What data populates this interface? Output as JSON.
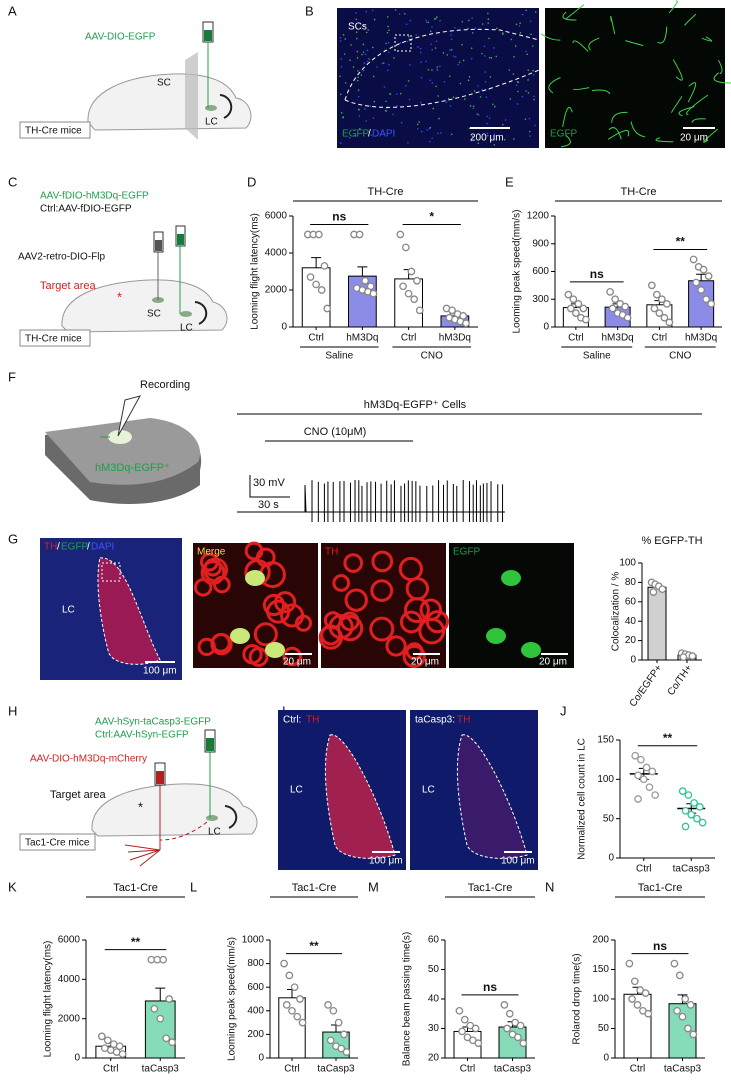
{
  "panels": {
    "A": {
      "label": "A",
      "virus": "AAV-DIO-EGFP",
      "sc": "SC",
      "lc": "LC",
      "mouse": "TH-Cre mice"
    },
    "B": {
      "label": "B",
      "region": "SCs",
      "stain1": "EGFP",
      "slash": "/",
      "stain2": "DAPI",
      "scale1": "200 μm",
      "stain3": "EGFP",
      "scale2": "20 μm"
    },
    "C": {
      "label": "C",
      "virus1": "AAV-fDIO-hM3Dq-EGFP",
      "virus2": "Ctrl:AAV-fDIO-EGFP",
      "virus3": "AAV2-retro-DIO-Flp",
      "target": "Target area",
      "star": "*",
      "sc": "SC",
      "lc": "LC",
      "mouse": "TH-Cre mice"
    },
    "D": {
      "label": "D"
    },
    "E": {
      "label": "E"
    },
    "F": {
      "label": "F",
      "recording": "Recording",
      "slice": "hM3Dq-EGFP⁺",
      "cells": "hM3Dq-EGFP⁺ Cells",
      "drug": "CNO (10μM)",
      "vscale": "30 mV",
      "tscale": "30 s"
    },
    "G": {
      "label": "G",
      "stain1": "TH",
      "slash1": "/",
      "stain2": "EGFP",
      "slash2": "/",
      "stain3": "DAPI",
      "region": "LC",
      "scale1": "100 μm",
      "merge": "Merge",
      "scale2": "20 μm",
      "th": "TH",
      "scale3": "20 μm",
      "egfp": "EGFP",
      "scale4": "20 μm"
    },
    "H": {
      "label": "H",
      "virus1": "AAV-hSyn-taCasp3-EGFP",
      "virus2": "Ctrl:AAV-hSyn-EGFP",
      "virus3": "AAV-DIO-hM3Dq-mCherry",
      "target": "Target area",
      "star": "*",
      "lc": "LC",
      "mouse": "Tac1-Cre mice"
    },
    "I": {
      "label": "I",
      "ctrl": "Ctrl:",
      "th1": "TH",
      "lc1": "LC",
      "scale1": "100 μm",
      "casp": "taCasp3:",
      "th2": "TH",
      "lc2": "LC",
      "scale2": "100 μm"
    },
    "J": {
      "label": "J"
    },
    "K": {
      "label": "K"
    },
    "L": {
      "label": "L"
    },
    "M": {
      "label": "M"
    },
    "N": {
      "label": "N"
    }
  },
  "chart_data": [
    {
      "type": "bar",
      "title": "TH-Cre",
      "ylabel": "Looming flight latency(ms)",
      "categories": [
        "Ctrl",
        "hM3Dq",
        "Ctrl",
        "hM3Dq"
      ],
      "groups": [
        {
          "name": "Saline",
          "span": [
            0,
            1
          ]
        },
        {
          "name": "CNO",
          "span": [
            2,
            3
          ]
        }
      ],
      "values": [
        3200,
        2750,
        2600,
        600
      ],
      "errors": [
        550,
        500,
        500,
        120
      ],
      "points": [
        [
          5000,
          5000,
          5000,
          3300,
          2700,
          2300,
          2000,
          1000
        ],
        [
          5000,
          5000,
          2500,
          2200,
          2100,
          2000,
          1900,
          1800
        ],
        [
          5000,
          4300,
          3000,
          2500,
          2200,
          1800,
          1500,
          900
        ],
        [
          1000,
          900,
          700,
          600,
          500,
          400,
          300,
          200
        ]
      ],
      "colors": [
        "#ffffff",
        "#8c8ce8",
        "#ffffff",
        "#8c8ce8"
      ],
      "ylim": [
        0,
        6000
      ],
      "yticks": [
        0,
        2000,
        4000,
        6000
      ],
      "significance": [
        {
          "label": "ns",
          "span": [
            0,
            1
          ]
        },
        {
          "label": "*",
          "span": [
            2,
            3
          ]
        }
      ]
    },
    {
      "type": "bar",
      "title": "TH-Cre",
      "ylabel": "Looming peak speed(mm/s)",
      "categories": [
        "Ctrl",
        "hM3Dq",
        "Ctrl",
        "hM3Dq"
      ],
      "groups": [
        {
          "name": "Saline",
          "span": [
            0,
            1
          ]
        },
        {
          "name": "CNO",
          "span": [
            2,
            3
          ]
        }
      ],
      "values": [
        210,
        215,
        240,
        500
      ],
      "errors": [
        40,
        35,
        45,
        70
      ],
      "points": [
        [
          350,
          300,
          250,
          200,
          200,
          150,
          100,
          80
        ],
        [
          380,
          300,
          250,
          220,
          200,
          150,
          130,
          100
        ],
        [
          450,
          350,
          300,
          250,
          200,
          150,
          100,
          50
        ],
        [
          730,
          650,
          620,
          550,
          480,
          400,
          300,
          250
        ]
      ],
      "colors": [
        "#ffffff",
        "#8c8ce8",
        "#ffffff",
        "#8c8ce8"
      ],
      "ylim": [
        0,
        1200
      ],
      "yticks": [
        0,
        300,
        600,
        900,
        1200
      ],
      "significance": [
        {
          "label": "ns",
          "span": [
            0,
            1
          ]
        },
        {
          "label": "**",
          "span": [
            2,
            3
          ]
        }
      ]
    },
    {
      "type": "bar",
      "title": "% EGFP-TH",
      "ylabel": "Colocalization / %",
      "categories": [
        "Co/EGFP+",
        "Co/TH+"
      ],
      "rotate_labels": true,
      "values": [
        75,
        5
      ],
      "errors": [
        3,
        1
      ],
      "points": [
        [
          80,
          78,
          76,
          73,
          70
        ],
        [
          7,
          6,
          5,
          4,
          3
        ]
      ],
      "colors": [
        "#d0d0d0",
        "#d0d0d0"
      ],
      "ylim": [
        0,
        100
      ],
      "yticks": [
        0,
        20,
        40,
        60,
        80,
        100
      ]
    },
    {
      "type": "scatter",
      "ylabel": "Normalized cell count in LC",
      "categories": [
        "Ctrl",
        "taCasp3"
      ],
      "values": [
        107,
        63
      ],
      "errors": [
        7,
        6
      ],
      "points": [
        [
          130,
          125,
          115,
          110,
          105,
          100,
          90,
          80,
          75
        ],
        [
          85,
          80,
          70,
          65,
          60,
          55,
          50,
          45,
          40
        ]
      ],
      "colors": [
        "#9a9a9a",
        "#2fc49a"
      ],
      "ylim": [
        0,
        150
      ],
      "yticks": [
        0,
        50,
        100,
        150
      ],
      "significance": [
        {
          "label": "**",
          "span": [
            0,
            1
          ]
        }
      ]
    },
    {
      "type": "bar",
      "title": "Tac1-Cre",
      "ylabel": "Looming flight latency(ms)",
      "categories": [
        "Ctrl",
        "taCasp3"
      ],
      "values": [
        600,
        2900
      ],
      "errors": [
        150,
        650
      ],
      "points": [
        [
          1100,
          900,
          700,
          600,
          500,
          400,
          300,
          200
        ],
        [
          5000,
          5000,
          5000,
          3000,
          2500,
          2000,
          1000,
          800
        ]
      ],
      "colors": [
        "#ffffff",
        "#86dcb8"
      ],
      "ylim": [
        0,
        6000
      ],
      "yticks": [
        0,
        2000,
        4000,
        6000
      ],
      "significance": [
        {
          "label": "**",
          "span": [
            0,
            1
          ]
        }
      ]
    },
    {
      "type": "bar",
      "title": "Tac1-Cre",
      "ylabel": "Looming peak speed(mm/s)",
      "categories": [
        "Ctrl",
        "taCasp3"
      ],
      "values": [
        510,
        220
      ],
      "errors": [
        70,
        60
      ],
      "points": [
        [
          800,
          700,
          600,
          500,
          450,
          400,
          350,
          300
        ],
        [
          450,
          400,
          300,
          200,
          150,
          100,
          80,
          50
        ]
      ],
      "colors": [
        "#ffffff",
        "#86dcb8"
      ],
      "ylim": [
        0,
        1000
      ],
      "yticks": [
        0,
        200,
        400,
        600,
        800,
        1000
      ],
      "significance": [
        {
          "label": "**",
          "span": [
            0,
            1
          ]
        }
      ]
    },
    {
      "type": "bar",
      "title": "Tac1-Cre",
      "ylabel": "Balance beam passing time(s)",
      "categories": [
        "Ctrl",
        "taCasp3"
      ],
      "values": [
        29,
        30.5
      ],
      "errors": [
        1.5,
        1.8
      ],
      "points": [
        [
          36,
          33,
          31,
          30,
          29,
          27,
          26,
          25
        ],
        [
          38,
          35,
          32,
          31,
          30,
          28,
          27,
          25
        ]
      ],
      "colors": [
        "#ffffff",
        "#86dcb8"
      ],
      "ylim": [
        20,
        60
      ],
      "yticks": [
        20,
        30,
        40,
        50,
        60
      ],
      "significance": [
        {
          "label": "ns",
          "span": [
            0,
            1
          ]
        }
      ]
    },
    {
      "type": "bar",
      "title": "Tac1-Cre",
      "ylabel": "Rolarod drop time(s)",
      "categories": [
        "Ctrl",
        "taCasp3"
      ],
      "values": [
        108,
        92
      ],
      "errors": [
        12,
        15
      ],
      "points": [
        [
          160,
          130,
          115,
          110,
          100,
          90,
          80,
          75
        ],
        [
          160,
          140,
          100,
          90,
          80,
          70,
          50,
          40
        ]
      ],
      "colors": [
        "#ffffff",
        "#86dcb8"
      ],
      "ylim": [
        0,
        200
      ],
      "yticks": [
        0,
        50,
        100,
        150,
        200
      ],
      "significance": [
        {
          "label": "ns",
          "span": [
            0,
            1
          ]
        }
      ]
    }
  ]
}
